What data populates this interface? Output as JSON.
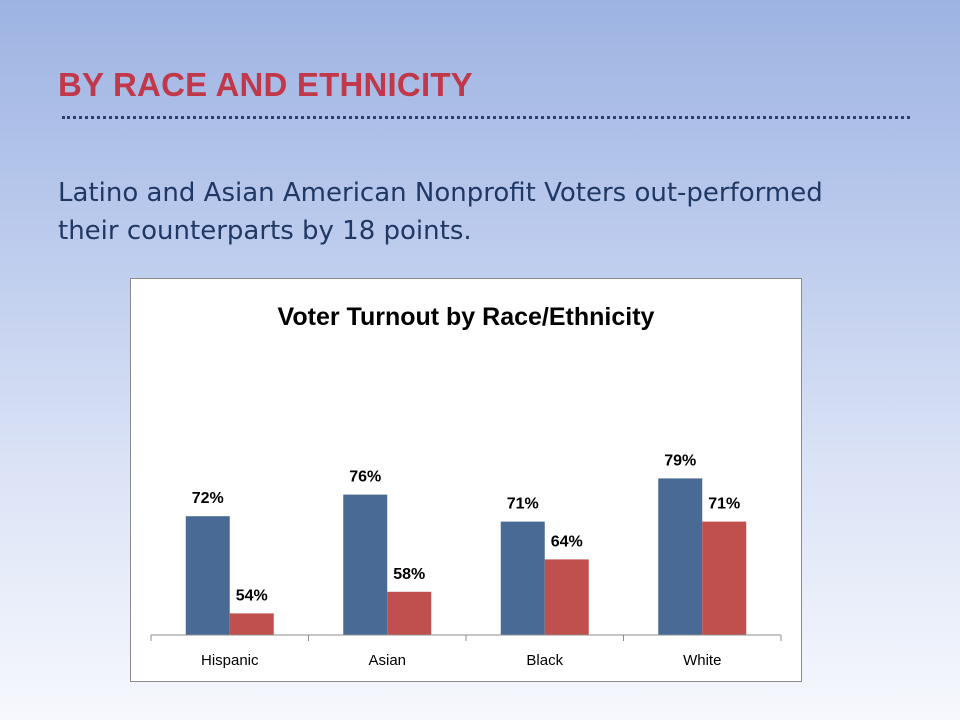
{
  "slide": {
    "title": "BY RACE AND ETHNICITY",
    "subtitle": "Latino and Asian American Nonprofit Voters out-performed their counterparts by 18 points."
  },
  "chart_data": {
    "type": "bar",
    "title": "Voter Turnout by Race/Ethnicity",
    "categories": [
      "Hispanic",
      "Asian",
      "Black",
      "White"
    ],
    "series": [
      {
        "values": [
          72,
          76,
          71,
          79
        ],
        "labels": [
          "72%",
          "76%",
          "71%",
          "79%"
        ],
        "color": "#4a6a96"
      },
      {
        "values": [
          54,
          58,
          64,
          71
        ],
        "labels": [
          "54%",
          "58%",
          "64%",
          "71%"
        ],
        "color": "#c0504d"
      }
    ],
    "xlabel": "",
    "ylabel": "",
    "ylim": [
      50,
      100
    ],
    "grid": false,
    "legend": "none"
  }
}
